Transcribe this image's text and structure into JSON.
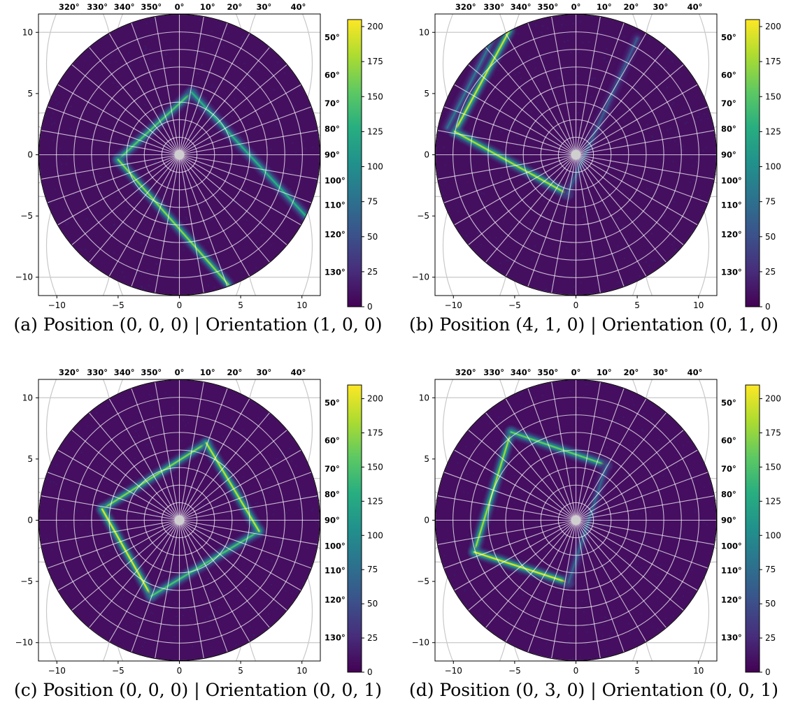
{
  "panels": [
    {
      "id": "a",
      "caption": "(a) Position (0, 0, 0) | Orientation (1, 0, 0)",
      "chart_data": {
        "type": "heatmap",
        "projection": "polar fisheye (azimuth/elevation grid over x-y plane)",
        "xlim": [
          -11.5,
          11.5
        ],
        "ylim": [
          -11.5,
          11.5
        ],
        "xticks": [
          -10,
          -5,
          0,
          5,
          10
        ],
        "yticks": [
          -10,
          -5,
          0,
          5,
          10
        ],
        "top_labels": [
          "320°",
          "330°",
          "340°",
          "350°",
          "0°",
          "10°",
          "20°",
          "30°",
          "40°"
        ],
        "right_labels": [
          "50°",
          "60°",
          "70°",
          "80°",
          "90°",
          "100°",
          "110°",
          "120°",
          "130°"
        ],
        "colorbar": {
          "min": 0,
          "max": 205,
          "ticks": [
            0,
            25,
            50,
            75,
            100,
            125,
            150,
            175,
            200
          ],
          "colormap": "viridis"
        },
        "background_value": 8,
        "segments": [
          {
            "from": [
              1.0,
              5.1
            ],
            "to": [
              -5.0,
              -0.4
            ],
            "peak": 150
          },
          {
            "from": [
              -5.0,
              -0.4
            ],
            "to": [
              4.0,
              -10.6
            ],
            "peak": 170
          },
          {
            "from": [
              1.0,
              5.1
            ],
            "to": [
              10.5,
              -5.2
            ],
            "peak": 130
          }
        ]
      }
    },
    {
      "id": "b",
      "caption": "(b) Position (4, 1, 0) | Orientation (0, 1, 0)",
      "chart_data": {
        "type": "heatmap",
        "projection": "polar fisheye (azimuth/elevation grid over x-y plane)",
        "xlim": [
          -11.5,
          11.5
        ],
        "ylim": [
          -11.5,
          11.5
        ],
        "xticks": [
          -10,
          -5,
          0,
          5,
          10
        ],
        "yticks": [
          -10,
          -5,
          0,
          5,
          10
        ],
        "top_labels": [
          "320°",
          "330°",
          "340°",
          "350°",
          "0°",
          "10°",
          "20°",
          "30°",
          "40°"
        ],
        "right_labels": [
          "50°",
          "60°",
          "70°",
          "80°",
          "90°",
          "100°",
          "110°",
          "120°",
          "130°"
        ],
        "colorbar": {
          "min": 0,
          "max": 205,
          "ticks": [
            0,
            25,
            50,
            75,
            100,
            125,
            150,
            175,
            200
          ],
          "colormap": "viridis"
        },
        "background_value": 8,
        "segments": [
          {
            "from": [
              -9.9,
              1.9
            ],
            "to": [
              -5.4,
              10.2
            ],
            "peak": 190
          },
          {
            "from": [
              -9.9,
              1.9
            ],
            "to": [
              -0.7,
              -3.2
            ],
            "peak": 180
          },
          {
            "from": [
              -0.7,
              -3.2
            ],
            "to": [
              5.0,
              9.5
            ],
            "peak": 60
          },
          {
            "from": [
              -10.5,
              2.2
            ],
            "to": [
              -6.2,
              10.6
            ],
            "peak": 80
          }
        ]
      }
    },
    {
      "id": "c",
      "caption": "(c) Position (0, 0, 0) | Orientation (0, 0, 1)",
      "chart_data": {
        "type": "heatmap",
        "projection": "polar fisheye (azimuth/elevation grid over x-y plane)",
        "xlim": [
          -11.5,
          11.5
        ],
        "ylim": [
          -11.5,
          11.5
        ],
        "xticks": [
          -10,
          -5,
          0,
          5,
          10
        ],
        "yticks": [
          -10,
          -5,
          0,
          5,
          10
        ],
        "top_labels": [
          "320°",
          "330°",
          "340°",
          "350°",
          "0°",
          "10°",
          "20°",
          "30°",
          "40°"
        ],
        "right_labels": [
          "50°",
          "60°",
          "70°",
          "80°",
          "90°",
          "100°",
          "110°",
          "120°",
          "130°"
        ],
        "colorbar": {
          "min": 0,
          "max": 210,
          "ticks": [
            0,
            25,
            50,
            75,
            100,
            125,
            150,
            175,
            200
          ],
          "colormap": "viridis"
        },
        "background_value": 8,
        "segments": [
          {
            "from": [
              2.2,
              6.3
            ],
            "to": [
              -6.3,
              0.9
            ],
            "peak": 170
          },
          {
            "from": [
              -6.3,
              0.9
            ],
            "to": [
              -2.3,
              -6.2
            ],
            "peak": 200
          },
          {
            "from": [
              -2.3,
              -6.2
            ],
            "to": [
              6.5,
              -0.9
            ],
            "peak": 150
          },
          {
            "from": [
              6.5,
              -0.9
            ],
            "to": [
              2.2,
              6.3
            ],
            "peak": 190
          }
        ]
      }
    },
    {
      "id": "d",
      "caption": "(d) Position (0, 3, 0) | Orientation (0, 0, 1)",
      "chart_data": {
        "type": "heatmap",
        "projection": "polar fisheye (azimuth/elevation grid over x-y plane)",
        "xlim": [
          -11.5,
          11.5
        ],
        "ylim": [
          -11.5,
          11.5
        ],
        "xticks": [
          -10,
          -5,
          0,
          5,
          10
        ],
        "yticks": [
          -10,
          -5,
          0,
          5,
          10
        ],
        "top_labels": [
          "320°",
          "330°",
          "340°",
          "350°",
          "0°",
          "10°",
          "20°",
          "30°",
          "40°"
        ],
        "right_labels": [
          "50°",
          "60°",
          "70°",
          "80°",
          "90°",
          "100°",
          "110°",
          "120°",
          "130°"
        ],
        "colorbar": {
          "min": 0,
          "max": 210,
          "ticks": [
            0,
            25,
            50,
            75,
            100,
            125,
            150,
            175,
            200
          ],
          "colormap": "viridis"
        },
        "background_value": 8,
        "segments": [
          {
            "from": [
              -5.3,
              7.2
            ],
            "to": [
              -8.3,
              -2.6
            ],
            "peak": 180
          },
          {
            "from": [
              -5.3,
              7.2
            ],
            "to": [
              2.5,
              4.5
            ],
            "peak": 160
          },
          {
            "from": [
              -8.3,
              -2.6
            ],
            "to": [
              -0.6,
              -5.1
            ],
            "peak": 200
          },
          {
            "from": [
              2.5,
              4.5
            ],
            "to": [
              -0.6,
              -5.1
            ],
            "peak": 70
          }
        ]
      }
    }
  ],
  "colors": {
    "grid": "#d6d6d6",
    "background": "#440154"
  }
}
